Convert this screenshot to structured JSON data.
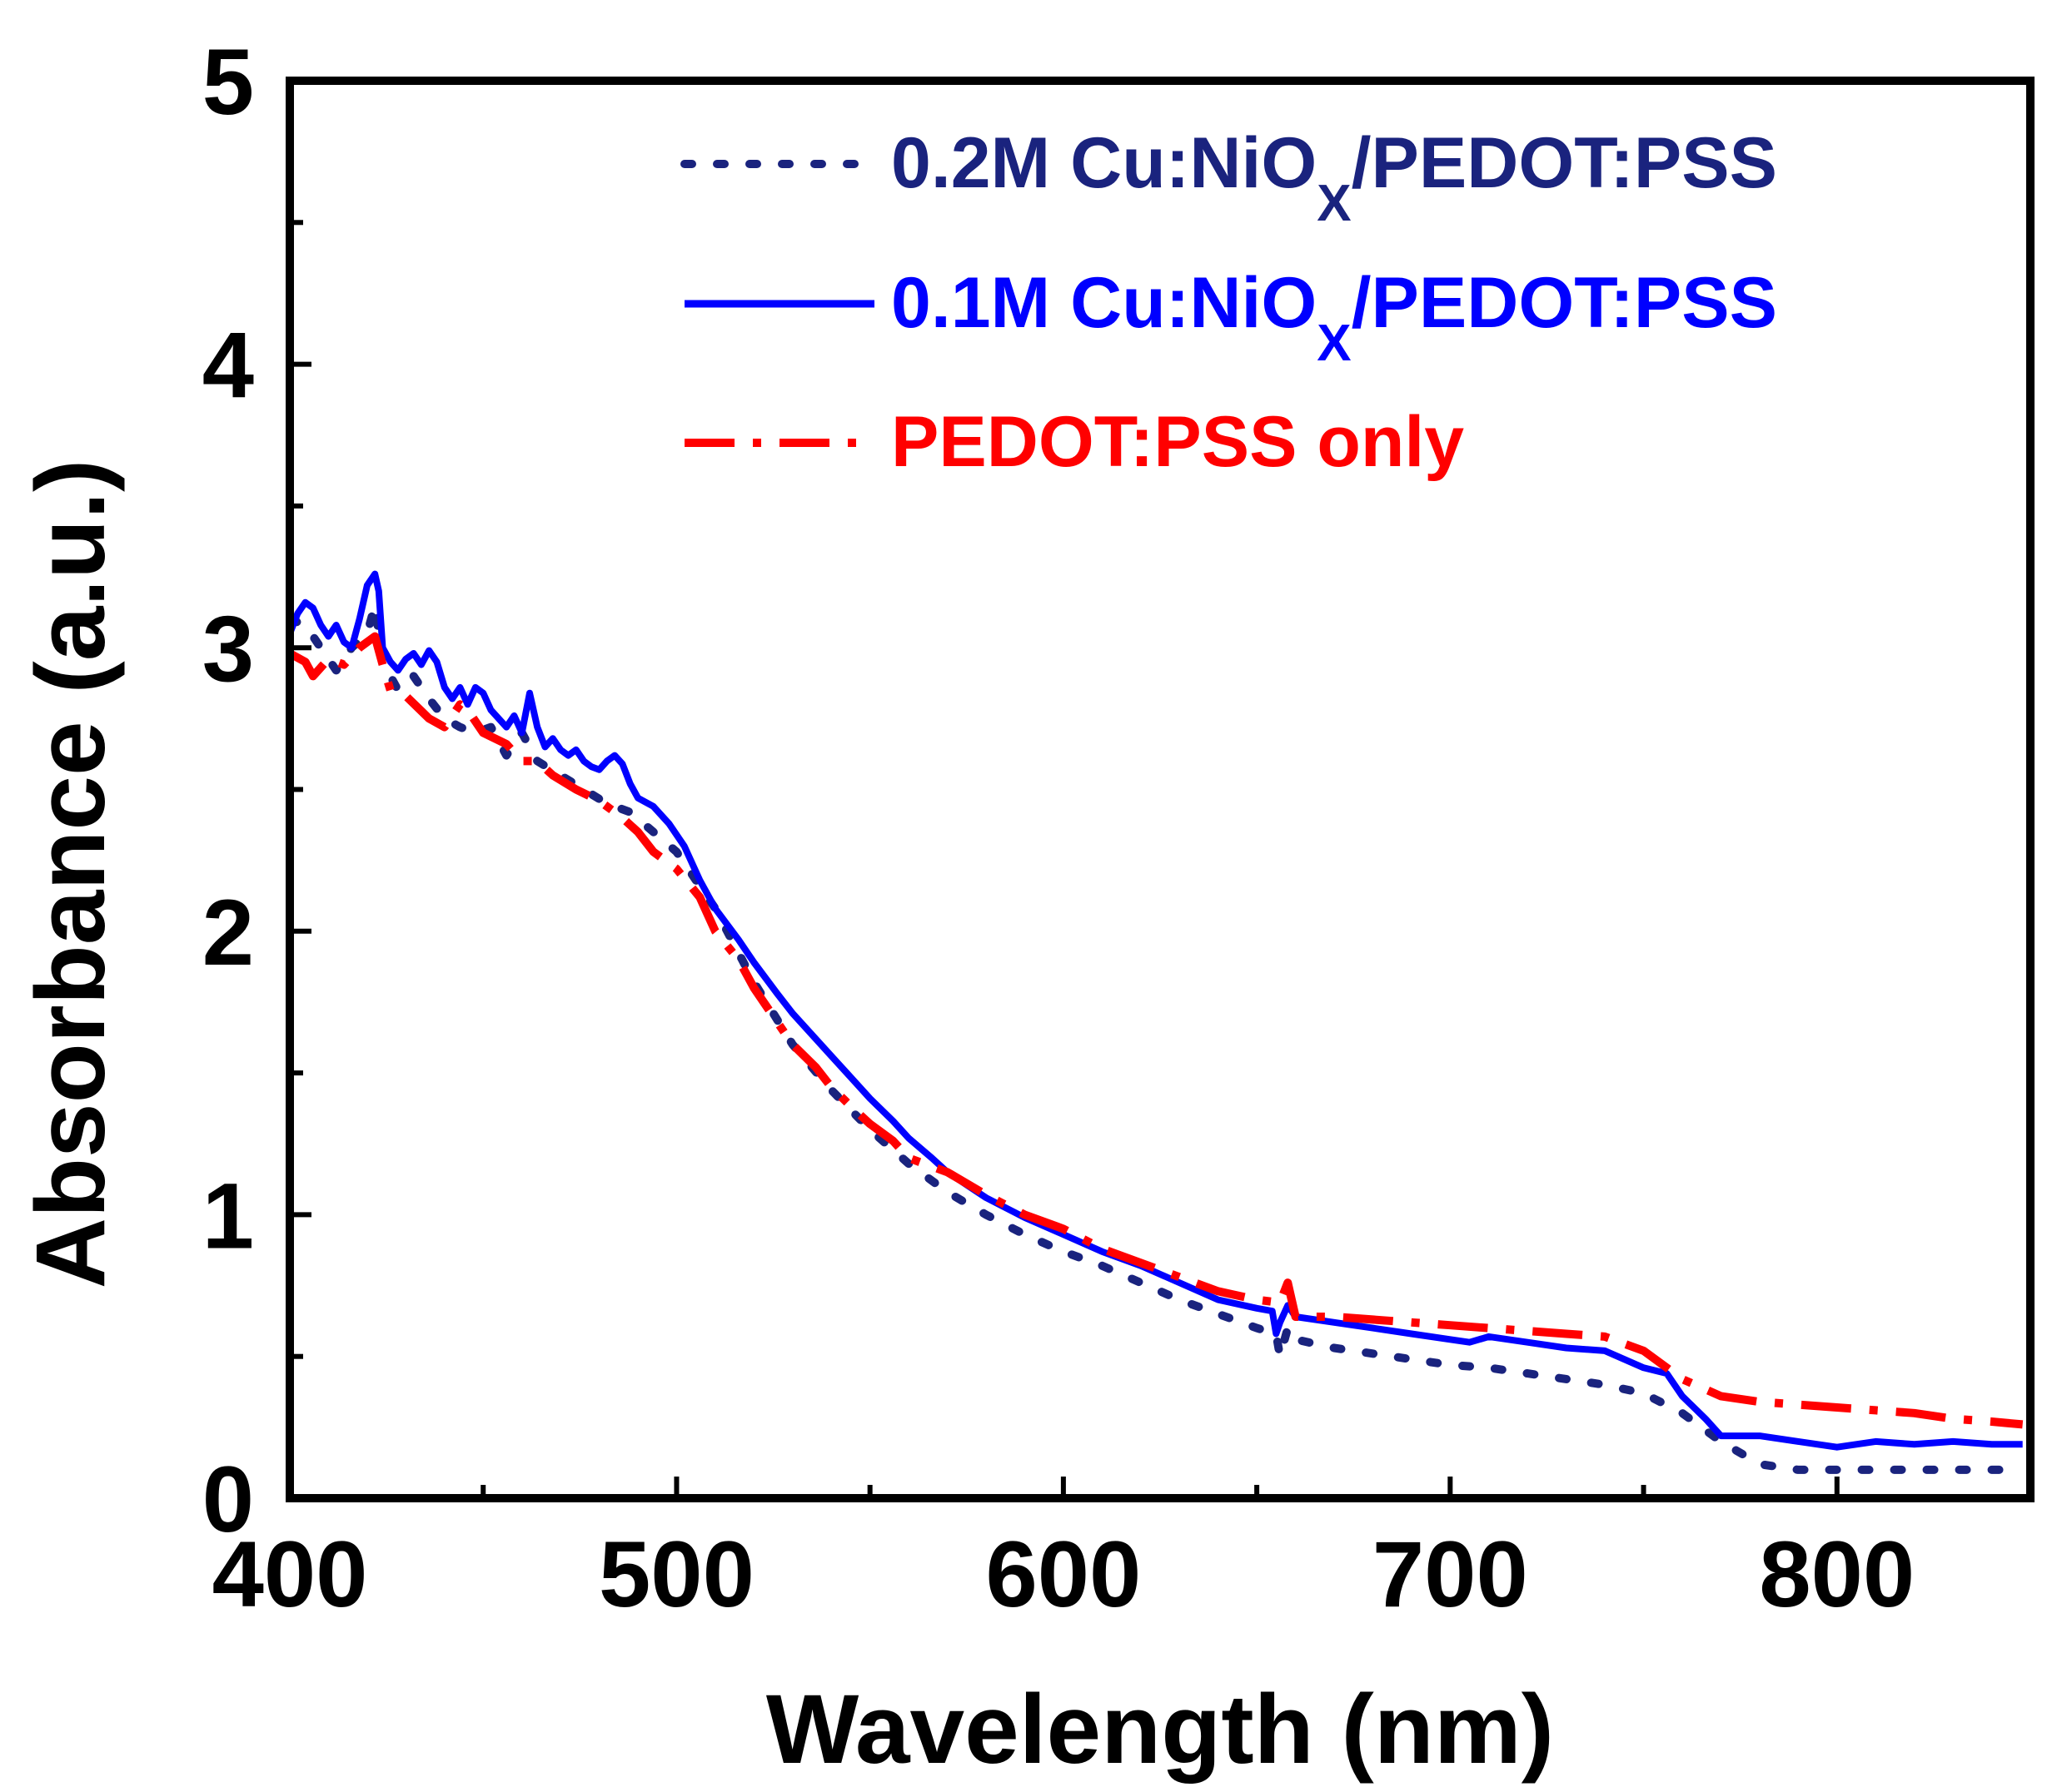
{
  "chart_data": {
    "type": "line",
    "title": "",
    "xlabel": "Wavelength (nm)",
    "ylabel": "Absorbance (a.u.)",
    "xlim": [
      400,
      850
    ],
    "ylim": [
      0,
      5
    ],
    "x_ticks": [
      400,
      500,
      600,
      700,
      800
    ],
    "x_tick_labels": [
      "400",
      "500",
      "600",
      "700",
      "800"
    ],
    "y_ticks": [
      0,
      1,
      2,
      3,
      4,
      5
    ],
    "y_tick_labels": [
      "0",
      "1",
      "2",
      "3",
      "4",
      "5"
    ],
    "grid": false,
    "legend_position": "top-right",
    "series": [
      {
        "legend_main": "0.2M Cu:NiO",
        "legend_sub": "X",
        "legend_tail": "/PEDOT:PSS",
        "color": "#1a237e",
        "dash": "dotted",
        "points": [
          [
            400,
            3.1
          ],
          [
            404,
            3.08
          ],
          [
            408,
            3.0
          ],
          [
            412,
            2.92
          ],
          [
            416,
            3.0
          ],
          [
            420,
            3.05
          ],
          [
            422,
            3.15
          ],
          [
            424,
            2.95
          ],
          [
            428,
            2.85
          ],
          [
            432,
            2.9
          ],
          [
            436,
            2.82
          ],
          [
            440,
            2.75
          ],
          [
            444,
            2.72
          ],
          [
            448,
            2.7
          ],
          [
            452,
            2.72
          ],
          [
            456,
            2.62
          ],
          [
            460,
            2.7
          ],
          [
            464,
            2.6
          ],
          [
            470,
            2.55
          ],
          [
            476,
            2.5
          ],
          [
            482,
            2.45
          ],
          [
            488,
            2.42
          ],
          [
            494,
            2.35
          ],
          [
            500,
            2.28
          ],
          [
            510,
            2.08
          ],
          [
            520,
            1.82
          ],
          [
            530,
            1.6
          ],
          [
            540,
            1.44
          ],
          [
            550,
            1.3
          ],
          [
            560,
            1.18
          ],
          [
            570,
            1.08
          ],
          [
            580,
            1.0
          ],
          [
            590,
            0.93
          ],
          [
            600,
            0.87
          ],
          [
            610,
            0.82
          ],
          [
            620,
            0.76
          ],
          [
            630,
            0.7
          ],
          [
            640,
            0.65
          ],
          [
            650,
            0.6
          ],
          [
            655,
            0.58
          ],
          [
            656,
            0.5
          ],
          [
            658,
            0.6
          ],
          [
            660,
            0.56
          ],
          [
            670,
            0.53
          ],
          [
            680,
            0.51
          ],
          [
            690,
            0.49
          ],
          [
            700,
            0.47
          ],
          [
            710,
            0.46
          ],
          [
            720,
            0.44
          ],
          [
            730,
            0.42
          ],
          [
            740,
            0.4
          ],
          [
            750,
            0.37
          ],
          [
            760,
            0.3
          ],
          [
            770,
            0.2
          ],
          [
            780,
            0.12
          ],
          [
            790,
            0.1
          ],
          [
            800,
            0.1
          ],
          [
            810,
            0.1
          ],
          [
            820,
            0.1
          ],
          [
            830,
            0.1
          ],
          [
            840,
            0.1
          ],
          [
            848,
            0.1
          ]
        ]
      },
      {
        "legend_main": "0.1M Cu:NiO",
        "legend_sub": "X",
        "legend_tail": "/PEDOT:PSS",
        "color": "#0000ff",
        "dash": "solid",
        "points": [
          [
            400,
            3.05
          ],
          [
            402,
            3.12
          ],
          [
            404,
            3.16
          ],
          [
            406,
            3.14
          ],
          [
            408,
            3.08
          ],
          [
            410,
            3.04
          ],
          [
            412,
            3.08
          ],
          [
            414,
            3.02
          ],
          [
            416,
            3.0
          ],
          [
            418,
            3.1
          ],
          [
            420,
            3.22
          ],
          [
            422,
            3.26
          ],
          [
            423,
            3.2
          ],
          [
            424,
            3.0
          ],
          [
            426,
            2.95
          ],
          [
            428,
            2.92
          ],
          [
            430,
            2.96
          ],
          [
            432,
            2.98
          ],
          [
            434,
            2.94
          ],
          [
            436,
            2.99
          ],
          [
            438,
            2.95
          ],
          [
            440,
            2.86
          ],
          [
            442,
            2.82
          ],
          [
            444,
            2.86
          ],
          [
            446,
            2.8
          ],
          [
            448,
            2.86
          ],
          [
            450,
            2.84
          ],
          [
            452,
            2.78
          ],
          [
            454,
            2.75
          ],
          [
            456,
            2.72
          ],
          [
            458,
            2.76
          ],
          [
            460,
            2.7
          ],
          [
            462,
            2.84
          ],
          [
            464,
            2.72
          ],
          [
            466,
            2.65
          ],
          [
            468,
            2.68
          ],
          [
            470,
            2.64
          ],
          [
            472,
            2.62
          ],
          [
            474,
            2.64
          ],
          [
            476,
            2.6
          ],
          [
            478,
            2.58
          ],
          [
            480,
            2.57
          ],
          [
            482,
            2.6
          ],
          [
            484,
            2.62
          ],
          [
            486,
            2.59
          ],
          [
            488,
            2.52
          ],
          [
            490,
            2.47
          ],
          [
            494,
            2.44
          ],
          [
            498,
            2.38
          ],
          [
            502,
            2.3
          ],
          [
            506,
            2.18
          ],
          [
            510,
            2.08
          ],
          [
            516,
            1.97
          ],
          [
            520,
            1.89
          ],
          [
            526,
            1.78
          ],
          [
            530,
            1.71
          ],
          [
            536,
            1.62
          ],
          [
            540,
            1.56
          ],
          [
            546,
            1.47
          ],
          [
            550,
            1.41
          ],
          [
            556,
            1.33
          ],
          [
            560,
            1.27
          ],
          [
            566,
            1.2
          ],
          [
            570,
            1.15
          ],
          [
            580,
            1.06
          ],
          [
            590,
            0.99
          ],
          [
            600,
            0.93
          ],
          [
            610,
            0.87
          ],
          [
            620,
            0.82
          ],
          [
            630,
            0.76
          ],
          [
            640,
            0.7
          ],
          [
            650,
            0.67
          ],
          [
            654,
            0.66
          ],
          [
            655,
            0.58
          ],
          [
            656,
            0.62
          ],
          [
            658,
            0.68
          ],
          [
            660,
            0.64
          ],
          [
            670,
            0.62
          ],
          [
            680,
            0.6
          ],
          [
            690,
            0.58
          ],
          [
            700,
            0.56
          ],
          [
            705,
            0.55
          ],
          [
            710,
            0.57
          ],
          [
            720,
            0.55
          ],
          [
            730,
            0.53
          ],
          [
            740,
            0.52
          ],
          [
            750,
            0.46
          ],
          [
            756,
            0.44
          ],
          [
            760,
            0.36
          ],
          [
            766,
            0.28
          ],
          [
            770,
            0.22
          ],
          [
            780,
            0.22
          ],
          [
            790,
            0.2
          ],
          [
            800,
            0.18
          ],
          [
            810,
            0.2
          ],
          [
            820,
            0.19
          ],
          [
            830,
            0.2
          ],
          [
            840,
            0.19
          ],
          [
            848,
            0.19
          ]
        ]
      },
      {
        "legend_main": "PEDOT:PSS only",
        "legend_sub": "",
        "legend_tail": "",
        "color": "#ff0000",
        "dash": "dash-dot",
        "points": [
          [
            400,
            2.98
          ],
          [
            404,
            2.95
          ],
          [
            406,
            2.9
          ],
          [
            410,
            2.96
          ],
          [
            414,
            2.94
          ],
          [
            418,
            3.0
          ],
          [
            420,
            3.02
          ],
          [
            422,
            3.04
          ],
          [
            424,
            2.94
          ],
          [
            426,
            2.85
          ],
          [
            430,
            2.83
          ],
          [
            436,
            2.75
          ],
          [
            440,
            2.72
          ],
          [
            444,
            2.8
          ],
          [
            446,
            2.78
          ],
          [
            450,
            2.7
          ],
          [
            456,
            2.66
          ],
          [
            460,
            2.6
          ],
          [
            464,
            2.6
          ],
          [
            468,
            2.55
          ],
          [
            474,
            2.5
          ],
          [
            480,
            2.46
          ],
          [
            486,
            2.4
          ],
          [
            490,
            2.35
          ],
          [
            494,
            2.28
          ],
          [
            500,
            2.22
          ],
          [
            506,
            2.12
          ],
          [
            510,
            2.0
          ],
          [
            516,
            1.9
          ],
          [
            520,
            1.8
          ],
          [
            526,
            1.68
          ],
          [
            530,
            1.6
          ],
          [
            536,
            1.52
          ],
          [
            540,
            1.45
          ],
          [
            546,
            1.37
          ],
          [
            550,
            1.32
          ],
          [
            556,
            1.26
          ],
          [
            560,
            1.2
          ],
          [
            566,
            1.17
          ],
          [
            570,
            1.15
          ],
          [
            580,
            1.07
          ],
          [
            590,
            1.0
          ],
          [
            600,
            0.95
          ],
          [
            610,
            0.88
          ],
          [
            620,
            0.83
          ],
          [
            630,
            0.78
          ],
          [
            640,
            0.73
          ],
          [
            650,
            0.7
          ],
          [
            656,
            0.69
          ],
          [
            658,
            0.76
          ],
          [
            660,
            0.64
          ],
          [
            670,
            0.64
          ],
          [
            680,
            0.63
          ],
          [
            690,
            0.62
          ],
          [
            700,
            0.61
          ],
          [
            710,
            0.6
          ],
          [
            720,
            0.59
          ],
          [
            730,
            0.58
          ],
          [
            740,
            0.57
          ],
          [
            750,
            0.52
          ],
          [
            760,
            0.42
          ],
          [
            770,
            0.36
          ],
          [
            780,
            0.34
          ],
          [
            790,
            0.33
          ],
          [
            800,
            0.32
          ],
          [
            810,
            0.31
          ],
          [
            820,
            0.3
          ],
          [
            830,
            0.28
          ],
          [
            840,
            0.27
          ],
          [
            848,
            0.26
          ]
        ]
      }
    ]
  }
}
